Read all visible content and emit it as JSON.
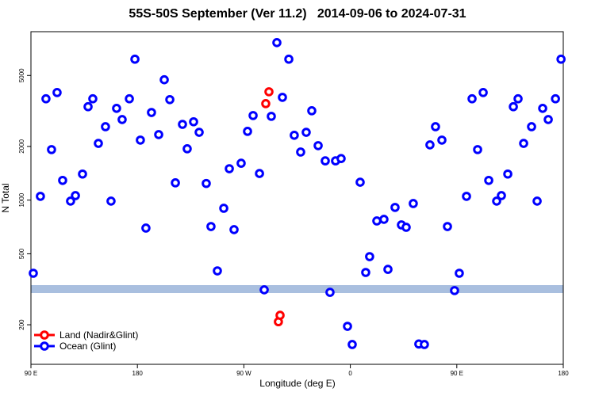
{
  "chart_data": {
    "type": "scatter",
    "title": "55S-50S September (Ver 11.2)   2014-09-06 to 2024-07-31",
    "x_label": "Longitude (deg E)",
    "y_label": "N Total",
    "xlim": [
      90,
      540
    ],
    "xticks": [
      {
        "value": 90,
        "label": "90 E"
      },
      180,
      {
        "value": 270,
        "label": "90 W"
      },
      {
        "value": 360,
        "label": "0"
      },
      {
        "value": 450,
        "label": "90 E"
      },
      {
        "value": 540,
        "label": "180"
      }
    ],
    "ylim": [
      120,
      8800
    ],
    "log_y": true,
    "yticks": [
      200,
      500,
      1000,
      2000,
      5000
    ],
    "legend": "bottom-left",
    "series": [
      {
        "name": "Land (Nadir&Glint)",
        "color": "#ff0000",
        "x": [
          288.5,
          291.2,
          299.2,
          300.6
        ],
        "values": [
          3475,
          4050,
          208,
          226
        ]
      },
      {
        "name": "Ocean (Glint)",
        "color": "#0000ff",
        "x": [
          92.0,
          98.0,
          102.7,
          107.4,
          112.1,
          116.8,
          123.5,
          127.6,
          133.6,
          138.3,
          142.3,
          147.0,
          153.0,
          157.7,
          162.4,
          167.1,
          173.2,
          177.9,
          182.5,
          187.2,
          191.9,
          198.0,
          202.7,
          207.4,
          212.1,
          218.1,
          222.1,
          227.5,
          232.2,
          238.2,
          242.2,
          247.6,
          253.0,
          257.7,
          261.7,
          267.7,
          273.1,
          277.8,
          283.2,
          287.2,
          293.2,
          297.9,
          302.6,
          308.0,
          312.6,
          318.0,
          322.7,
          327.4,
          332.8,
          338.8,
          342.8,
          347.5,
          352.2,
          357.6,
          361.6,
          368.3,
          373.0,
          376.3,
          382.4,
          388.4,
          391.8,
          397.8,
          403.2,
          407.2,
          413.2,
          417.9,
          422.6,
          427.3,
          432.0,
          437.4,
          442.1,
          448.1,
          452.1,
          458.2,
          462.9,
          467.6,
          472.3,
          477.0,
          483.7,
          487.7,
          493.1,
          497.8,
          501.8,
          506.5,
          513.2,
          517.9,
          522.6,
          527.3,
          533.4,
          538.1
        ],
        "values": [
          389,
          1050,
          3700,
          1920,
          4010,
          1290,
          987,
          1060,
          1400,
          3340,
          3700,
          2080,
          2580,
          987,
          3270,
          2830,
          3700,
          6170,
          2170,
          697,
          3100,
          2330,
          4730,
          3660,
          1250,
          2660,
          1940,
          2750,
          2400,
          1240,
          711,
          401,
          900,
          1500,
          683,
          1610,
          2430,
          2980,
          1410,
          314,
          2950,
          7640,
          3770,
          6170,
          2310,
          1860,
          2400,
          3170,
          2020,
          1660,
          304,
          1660,
          1710,
          196,
          155,
          1260,
          393,
          482,
          764,
          780,
          409,
          910,
          726,
          704,
          957,
          156,
          155,
          2040,
          2580,
          2170,
          711,
          311,
          389,
          1050,
          3700,
          1920,
          4010,
          1290,
          987,
          1060,
          1400,
          3340,
          3700,
          2080,
          2580,
          987,
          3270,
          2830,
          3700,
          6170
        ]
      }
    ]
  }
}
